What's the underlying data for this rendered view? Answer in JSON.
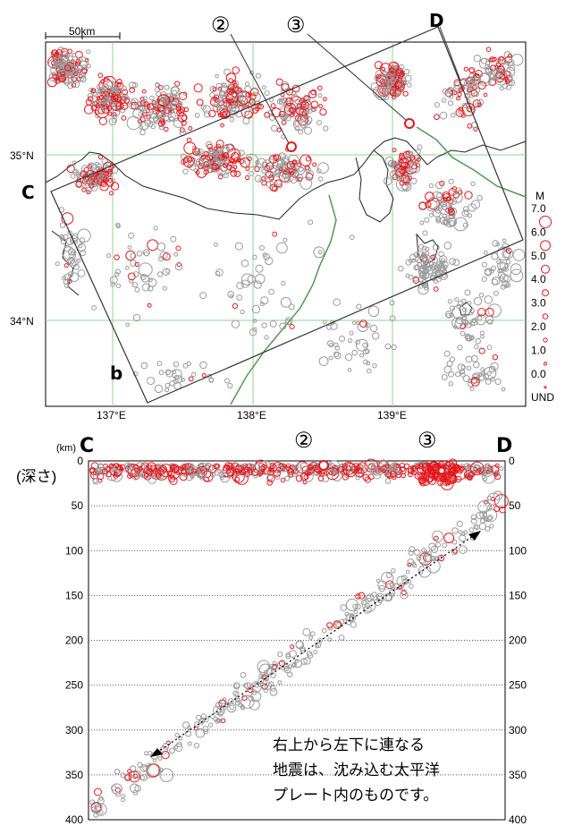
{
  "map": {
    "scale_label": "50km",
    "lat_labels": [
      "35°N",
      "34°N"
    ],
    "lon_labels": [
      "137°E",
      "138°E",
      "139°E"
    ],
    "section_end_c": "C",
    "section_end_d": "D",
    "section_corner_b": "b",
    "event_2": "②",
    "event_3": "③"
  },
  "legend": {
    "title": "M",
    "items": [
      "7.0",
      "6.0",
      "5.0",
      "4.0",
      "3.0",
      "2.0",
      "1.0",
      "0.0",
      "UND"
    ]
  },
  "section": {
    "unit": "(km)",
    "axis_title": "(深さ)",
    "end_c": "C",
    "end_d": "D",
    "event_2": "②",
    "event_3": "③",
    "depth_ticks": [
      "0",
      "50",
      "100",
      "150",
      "200",
      "250",
      "300",
      "350",
      "400"
    ],
    "annotation": [
      "右上から左下に連なる",
      "地震は、沈み込む太平洋",
      "プレート内のものです。"
    ]
  },
  "colors": {
    "shallow_event": "#e8141b",
    "deep_event": "#9a9a9a",
    "graticule": "#8fd68f",
    "trench_line": "#4f9a4f",
    "frame": "#000000"
  }
}
